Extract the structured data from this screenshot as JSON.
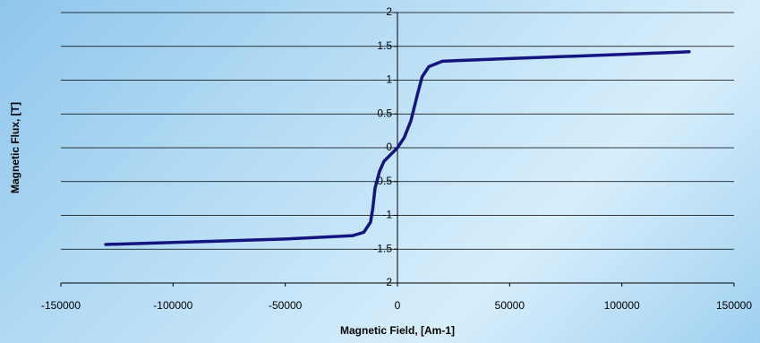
{
  "chart_data": {
    "type": "line",
    "x_label": "Magnetic Field, [Am-1]",
    "y_label": "Magnetic Flux, [T]",
    "x": [
      -130000,
      -100000,
      -50000,
      -20000,
      -15000,
      -12000,
      -11000,
      -10000,
      -8000,
      -6000,
      -3000,
      0,
      3000,
      6000,
      9000,
      11000,
      14000,
      20000,
      50000,
      100000,
      130000
    ],
    "series": [
      {
        "color": "#15157f",
        "values": [
          -1.43,
          -1.4,
          -1.35,
          -1.3,
          -1.25,
          -1.1,
          -0.9,
          -0.6,
          -0.35,
          -0.2,
          -0.1,
          0,
          0.15,
          0.4,
          0.8,
          1.05,
          1.2,
          1.28,
          1.32,
          1.38,
          1.42
        ]
      }
    ],
    "xlim": [
      -150000,
      150000
    ],
    "xticks": [
      -150000,
      -100000,
      -50000,
      0,
      50000,
      100000,
      150000
    ],
    "ylim": [
      -2,
      2
    ],
    "yticks": [
      -2,
      -1.5,
      -1,
      -0.5,
      0,
      0.5,
      1,
      1.5,
      2
    ],
    "grid": true
  }
}
